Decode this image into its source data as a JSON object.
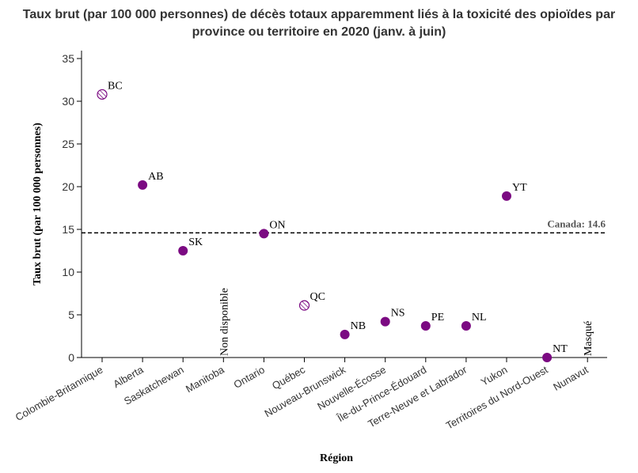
{
  "chart_data": {
    "type": "scatter",
    "title": "Taux brut (par 100 000 personnes) de décès totaux apparemment liés à la toxicité des opioïdes par province ou territoire en 2020 (janv. à juin)",
    "xlabel": "Région",
    "ylabel": "Taux brut (par 100 000 personnes)",
    "ylim": [
      0,
      35
    ],
    "yticks": [
      0,
      5,
      10,
      15,
      20,
      25,
      30,
      35
    ],
    "grid": false,
    "categories": [
      "Colombie-Britannique",
      "Alberta",
      "Saskatchewan",
      "Manitoba",
      "Ontario",
      "Québec",
      "Nouveau-Brunswick",
      "Nouvelle-Écosse",
      "Île-du-Prince-Édouard",
      "Terre-Neuve et Labrador",
      "Yukon",
      "Territoires du Nord-Ouest",
      "Nunavut"
    ],
    "points": [
      {
        "category": "Colombie-Britannique",
        "label": "BC",
        "value": 30.8,
        "style": "hatched"
      },
      {
        "category": "Alberta",
        "label": "AB",
        "value": 20.2,
        "style": "solid"
      },
      {
        "category": "Saskatchewan",
        "label": "SK",
        "value": 12.5,
        "style": "solid"
      },
      {
        "category": "Manitoba",
        "label": "",
        "value": null,
        "style": "none",
        "note": "Non disponible"
      },
      {
        "category": "Ontario",
        "label": "ON",
        "value": 14.5,
        "style": "solid"
      },
      {
        "category": "Québec",
        "label": "QC",
        "value": 6.1,
        "style": "hatched"
      },
      {
        "category": "Nouveau-Brunswick",
        "label": "NB",
        "value": 2.7,
        "style": "solid"
      },
      {
        "category": "Nouvelle-Écosse",
        "label": "NS",
        "value": 4.2,
        "style": "solid"
      },
      {
        "category": "Île-du-Prince-Édouard",
        "label": "PE",
        "value": 3.7,
        "style": "solid"
      },
      {
        "category": "Terre-Neuve et Labrador",
        "label": "NL",
        "value": 3.7,
        "style": "solid"
      },
      {
        "category": "Yukon",
        "label": "YT",
        "value": 18.9,
        "style": "solid"
      },
      {
        "category": "Territoires du Nord-Ouest",
        "label": "NT",
        "value": 0.0,
        "style": "solid"
      },
      {
        "category": "Nunavut",
        "label": "",
        "value": null,
        "style": "none",
        "note": "Masqué"
      }
    ],
    "reference_line": {
      "value": 14.6,
      "label": "Canada: 14.6"
    },
    "colors": {
      "point": "#7b0a82",
      "axis": "#000000",
      "reference": "#000000"
    }
  }
}
